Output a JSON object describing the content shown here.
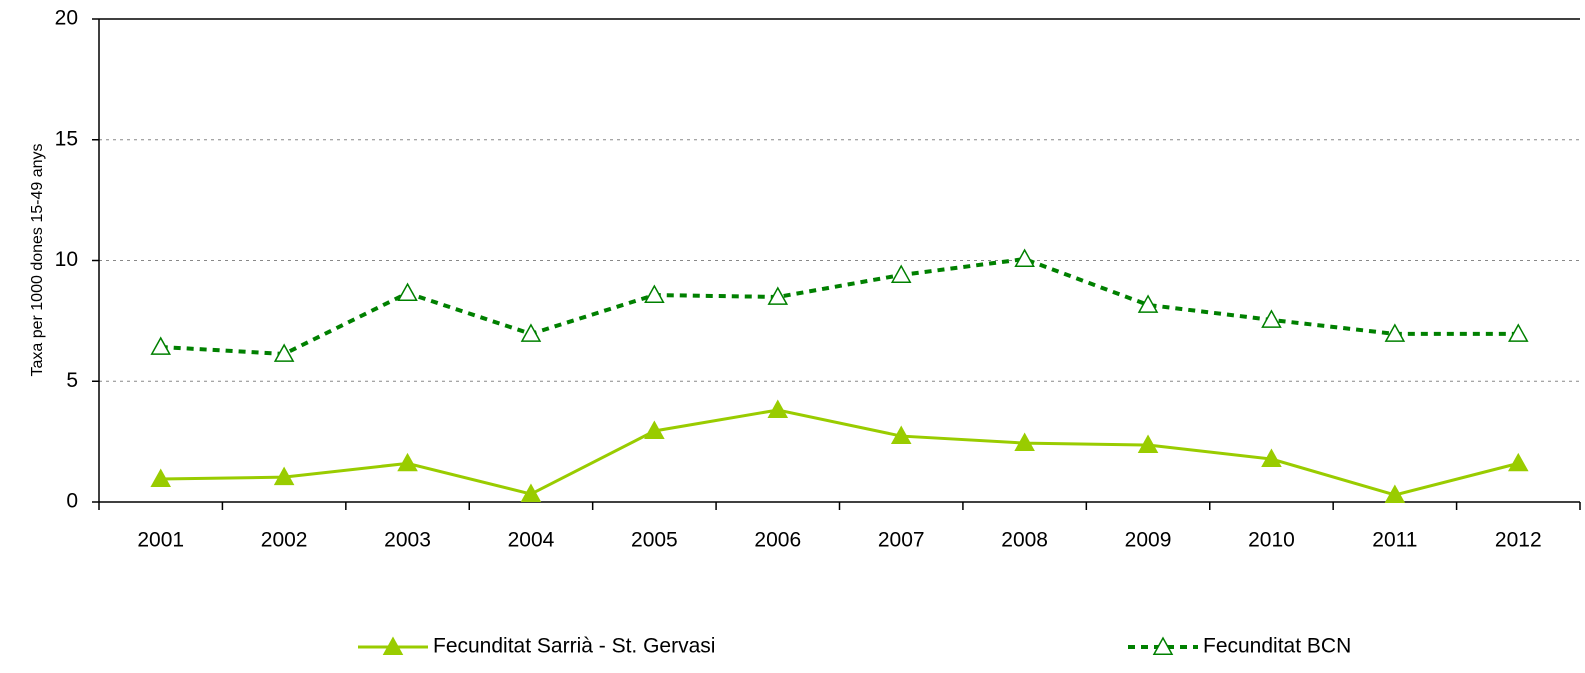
{
  "chart_data": {
    "type": "line",
    "y_label": "Taxa per 1000 dones 15-49 anys",
    "categories": [
      "2001",
      "2002",
      "2003",
      "2004",
      "2005",
      "2006",
      "2007",
      "2008",
      "2009",
      "2010",
      "2011",
      "2012"
    ],
    "series": [
      {
        "name": "Fecunditat Sarrià - St. Gervasi",
        "color": "#99cc00",
        "dashed": false,
        "marker_filled": true,
        "values": [
          0.95,
          1.03,
          1.6,
          0.33,
          2.94,
          3.81,
          2.73,
          2.44,
          2.36,
          1.78,
          0.29,
          1.6
        ]
      },
      {
        "name": "Fecunditat BCN",
        "color": "#008000",
        "dashed": true,
        "marker_filled": false,
        "values": [
          6.42,
          6.13,
          8.65,
          6.96,
          8.57,
          8.49,
          9.4,
          10.06,
          8.16,
          7.54,
          6.96,
          6.96
        ]
      }
    ],
    "ylim": [
      0,
      20
    ],
    "yticks": [
      0,
      5,
      10,
      15,
      20
    ],
    "grid": true
  }
}
